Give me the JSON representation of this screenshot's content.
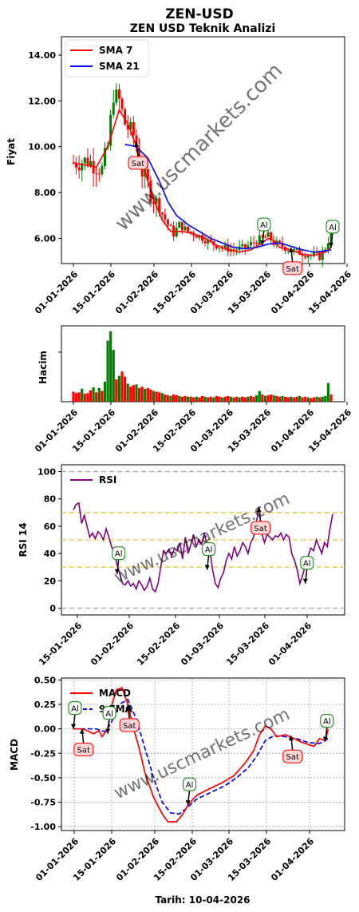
{
  "title": "ZEN-USD",
  "subtitle": "ZEN USD Teknik Analizi",
  "watermark": "www.uscmarkets.com",
  "footer": "Tarih: 10-04-2026",
  "colors": {
    "up": "#008000",
    "down": "#ff0000",
    "sma7": "#ff0000",
    "sma21": "#0000ff",
    "rsi": "#800080",
    "macd": "#ff0000",
    "signal": "#0000ff",
    "sell_bg": "#ffd6d6",
    "sell_edge": "#ff0000",
    "buy_bg": "#ffffff",
    "buy_edge": "#008000",
    "level_mid": "#f0c040",
    "level_edge": "#aaaaaa"
  },
  "chart_data": [
    {
      "id": "price",
      "type": "candlestick",
      "ylabel": "Fiyat",
      "yticks": [
        "14.00",
        "12.00",
        "10.00",
        "8.00",
        "6.00"
      ],
      "ylim": [
        4.9,
        14.8
      ],
      "xticks": [
        "01-01-2026",
        "15-01-2026",
        "01-02-2026",
        "15-02-2026",
        "01-03-2026",
        "15-03-2026",
        "01-04-2026",
        "15-04-2026"
      ],
      "legend": [
        {
          "name": "SMA 7",
          "color": "#ff0000"
        },
        {
          "name": "SMA 21",
          "color": "#0000ff"
        }
      ],
      "close_anchors": [
        [
          0,
          9.3
        ],
        [
          5,
          9.4
        ],
        [
          10,
          9.0
        ],
        [
          12,
          10.0
        ],
        [
          14,
          12.3
        ],
        [
          16,
          12.0
        ],
        [
          18,
          11.0
        ],
        [
          21,
          10.5
        ],
        [
          24,
          8.9
        ],
        [
          27,
          8.0
        ],
        [
          30,
          7.3
        ],
        [
          33,
          6.6
        ],
        [
          35,
          6.2
        ],
        [
          37,
          6.6
        ],
        [
          40,
          6.3
        ],
        [
          44,
          6.1
        ],
        [
          48,
          5.8
        ],
        [
          52,
          5.6
        ],
        [
          56,
          5.5
        ],
        [
          60,
          5.6
        ],
        [
          64,
          5.9
        ],
        [
          68,
          6.1
        ],
        [
          70,
          5.8
        ],
        [
          74,
          5.6
        ],
        [
          78,
          5.4
        ],
        [
          82,
          5.3
        ],
        [
          86,
          5.2
        ],
        [
          88,
          5.6
        ],
        [
          90,
          6.2
        ]
      ],
      "sma7_anchors": [
        [
          0,
          9.3
        ],
        [
          8,
          9.1
        ],
        [
          12,
          10.0
        ],
        [
          16,
          11.6
        ],
        [
          19,
          11.0
        ],
        [
          22,
          10.0
        ],
        [
          25,
          8.9
        ],
        [
          28,
          7.7
        ],
        [
          31,
          6.8
        ],
        [
          34,
          6.3
        ],
        [
          38,
          6.3
        ],
        [
          42,
          6.2
        ],
        [
          46,
          6.0
        ],
        [
          50,
          5.7
        ],
        [
          54,
          5.5
        ],
        [
          58,
          5.4
        ],
        [
          62,
          5.5
        ],
        [
          66,
          5.8
        ],
        [
          68,
          6.0
        ],
        [
          70,
          5.9
        ],
        [
          72,
          5.6
        ],
        [
          76,
          5.5
        ],
        [
          80,
          5.3
        ],
        [
          84,
          5.25
        ],
        [
          88,
          5.4
        ],
        [
          90,
          5.6
        ]
      ],
      "sma21_anchors": [
        [
          18,
          10.1
        ],
        [
          22,
          10.0
        ],
        [
          26,
          9.5
        ],
        [
          30,
          8.5
        ],
        [
          33,
          7.6
        ],
        [
          36,
          7.0
        ],
        [
          40,
          6.6
        ],
        [
          44,
          6.3
        ],
        [
          48,
          6.0
        ],
        [
          52,
          5.8
        ],
        [
          56,
          5.6
        ],
        [
          60,
          5.55
        ],
        [
          64,
          5.6
        ],
        [
          68,
          5.75
        ],
        [
          72,
          5.8
        ],
        [
          76,
          5.65
        ],
        [
          80,
          5.5
        ],
        [
          84,
          5.4
        ],
        [
          88,
          5.45
        ],
        [
          90,
          5.5
        ]
      ],
      "signals": [
        {
          "label": "Sat",
          "kind": "sell",
          "day": 22,
          "value": 10.2
        },
        {
          "label": "Al",
          "kind": "buy",
          "day": 66,
          "value": 5.7
        },
        {
          "label": "Sat",
          "kind": "sell",
          "day": 76,
          "value": 5.6
        },
        {
          "label": "Al",
          "kind": "buy",
          "day": 90,
          "value": 5.6
        }
      ]
    },
    {
      "id": "volume",
      "type": "bar",
      "ylabel": "Hacim",
      "xticks": [
        "01-01-2026",
        "15-01-2026",
        "01-02-2026",
        "15-02-2026",
        "01-03-2026",
        "15-03-2026",
        "01-04-2026",
        "15-04-2026"
      ],
      "values": [
        0.14,
        0.12,
        0.13,
        0.18,
        0.11,
        0.12,
        0.16,
        0.2,
        0.13,
        0.19,
        0.15,
        0.28,
        0.85,
        0.98,
        0.72,
        0.31,
        0.36,
        0.42,
        0.35,
        0.25,
        0.21,
        0.23,
        0.24,
        0.19,
        0.21,
        0.18,
        0.19,
        0.17,
        0.15,
        0.14,
        0.13,
        0.12,
        0.1,
        0.09,
        0.08,
        0.1,
        0.09,
        0.08,
        0.07,
        0.08,
        0.07,
        0.07,
        0.06,
        0.07,
        0.06,
        0.08,
        0.07,
        0.06,
        0.07,
        0.06,
        0.08,
        0.07,
        0.06,
        0.07,
        0.08,
        0.07,
        0.06,
        0.07,
        0.06,
        0.07,
        0.06,
        0.07,
        0.08,
        0.07,
        0.09,
        0.15,
        0.1,
        0.08,
        0.09,
        0.1,
        0.09,
        0.08,
        0.07,
        0.08,
        0.07,
        0.06,
        0.07,
        0.06,
        0.07,
        0.08,
        0.06,
        0.07,
        0.06,
        0.05,
        0.06,
        0.07,
        0.06,
        0.07,
        0.08,
        0.26,
        0.1
      ],
      "up_days": [
        3,
        7,
        9,
        11,
        12,
        13,
        14,
        16,
        19,
        22,
        25,
        28,
        31,
        34,
        37,
        40,
        43,
        46,
        49,
        52,
        55,
        58,
        61,
        64,
        65,
        67,
        70,
        73,
        76,
        79,
        82,
        85,
        87,
        88,
        89
      ]
    },
    {
      "id": "rsi",
      "type": "line",
      "ylabel": "RSI 14",
      "yticks": [
        "100",
        "80",
        "60",
        "40",
        "20",
        "0"
      ],
      "ylim": [
        -5,
        105
      ],
      "levels": [
        30,
        50,
        70
      ],
      "xticks": [
        "15-01-2026",
        "01-02-2026",
        "15-02-2026",
        "01-03-2026",
        "15-03-2026",
        "01-04-2026"
      ],
      "legend": [
        {
          "name": "RSI",
          "color": "#800080"
        }
      ],
      "values": [
        72,
        76,
        77,
        62,
        68,
        60,
        52,
        55,
        51,
        56,
        54,
        50,
        58,
        52,
        45,
        40,
        32,
        25,
        18,
        17,
        20,
        16,
        18,
        14,
        20,
        17,
        13,
        16,
        22,
        14,
        12,
        18,
        30,
        42,
        40,
        43,
        38,
        44,
        42,
        48,
        36,
        52,
        40,
        46,
        54,
        45,
        50,
        47,
        55,
        45,
        42,
        28,
        18,
        15,
        22,
        26,
        35,
        40,
        36,
        45,
        38,
        42,
        48,
        45,
        40,
        48,
        52,
        62,
        74,
        55,
        48,
        54,
        52,
        50,
        53,
        52,
        55,
        50,
        54,
        52,
        40,
        35,
        28,
        18,
        24,
        32,
        38,
        44,
        42,
        50,
        45,
        40,
        48,
        45,
        58,
        69
      ],
      "signals": [
        {
          "label": "Al",
          "kind": "buy",
          "idx": 16,
          "value": 25
        },
        {
          "label": "Al",
          "kind": "buy",
          "idx": 49,
          "value": 28
        },
        {
          "label": "Sat",
          "kind": "sell",
          "idx": 68,
          "value": 74
        },
        {
          "label": "Al",
          "kind": "buy",
          "idx": 85,
          "value": 18
        }
      ]
    },
    {
      "id": "macd",
      "type": "line",
      "ylabel": "MACD",
      "yticks": [
        "0.50",
        "0.25",
        "0.00",
        "-0.25",
        "-0.50",
        "-0.75",
        "-1.00"
      ],
      "ylim": [
        -1.04,
        0.52
      ],
      "xticks": [
        "01-01-2026",
        "15-01-2026",
        "01-02-2026",
        "15-02-2026",
        "01-03-2026",
        "15-03-2026",
        "01-04-2026"
      ],
      "xlabel": "Tarih: 10-04-2026",
      "legend": [
        {
          "name": "MACD",
          "color": "#ff0000"
        },
        {
          "name": "9 EMA",
          "color": "#0000ff"
        }
      ],
      "macd_anchors": [
        [
          0,
          0.0
        ],
        [
          3,
          0.0
        ],
        [
          5,
          -0.02
        ],
        [
          7,
          -0.05
        ],
        [
          9,
          -0.02
        ],
        [
          10,
          -0.08
        ],
        [
          12,
          0.0
        ],
        [
          13,
          0.2
        ],
        [
          15,
          0.4
        ],
        [
          17,
          0.42
        ],
        [
          19,
          0.25
        ],
        [
          21,
          0.0
        ],
        [
          23,
          -0.2
        ],
        [
          25,
          -0.45
        ],
        [
          28,
          -0.7
        ],
        [
          31,
          -0.87
        ],
        [
          33,
          -0.95
        ],
        [
          36,
          -0.95
        ],
        [
          38,
          -0.88
        ],
        [
          40,
          -0.78
        ],
        [
          43,
          -0.68
        ],
        [
          47,
          -0.62
        ],
        [
          52,
          -0.55
        ],
        [
          56,
          -0.48
        ],
        [
          60,
          -0.35
        ],
        [
          63,
          -0.22
        ],
        [
          65,
          -0.06
        ],
        [
          67,
          0.03
        ],
        [
          69,
          0.0
        ],
        [
          71,
          -0.08
        ],
        [
          74,
          -0.06
        ],
        [
          77,
          -0.1
        ],
        [
          80,
          -0.14
        ],
        [
          84,
          -0.18
        ],
        [
          86,
          -0.1
        ],
        [
          88,
          -0.12
        ],
        [
          89,
          0.0
        ]
      ],
      "signal_anchors": [
        [
          0,
          0.0
        ],
        [
          8,
          0.0
        ],
        [
          11,
          -0.03
        ],
        [
          13,
          0.05
        ],
        [
          16,
          0.25
        ],
        [
          19,
          0.3
        ],
        [
          22,
          0.1
        ],
        [
          25,
          -0.2
        ],
        [
          28,
          -0.5
        ],
        [
          31,
          -0.75
        ],
        [
          34,
          -0.86
        ],
        [
          37,
          -0.87
        ],
        [
          40,
          -0.8
        ],
        [
          43,
          -0.72
        ],
        [
          48,
          -0.65
        ],
        [
          53,
          -0.58
        ],
        [
          57,
          -0.5
        ],
        [
          61,
          -0.4
        ],
        [
          64,
          -0.28
        ],
        [
          67,
          -0.12
        ],
        [
          70,
          -0.07
        ],
        [
          74,
          -0.08
        ],
        [
          78,
          -0.1
        ],
        [
          82,
          -0.14
        ],
        [
          86,
          -0.15
        ],
        [
          89,
          -0.1
        ]
      ],
      "signals": [
        {
          "label": "Al",
          "kind": "buy",
          "day": 0,
          "value": 0.0
        },
        {
          "label": "Sat",
          "kind": "sell",
          "day": 3,
          "value": 0.0
        },
        {
          "label": "Al",
          "kind": "buy",
          "day": 12,
          "value": -0.05
        },
        {
          "label": "Sat",
          "kind": "sell",
          "day": 19,
          "value": 0.25
        },
        {
          "label": "Al",
          "kind": "buy",
          "day": 40,
          "value": -0.78
        },
        {
          "label": "Sat",
          "kind": "sell",
          "day": 76,
          "value": -0.07
        },
        {
          "label": "Al",
          "kind": "buy",
          "day": 88,
          "value": -0.13
        }
      ]
    }
  ]
}
